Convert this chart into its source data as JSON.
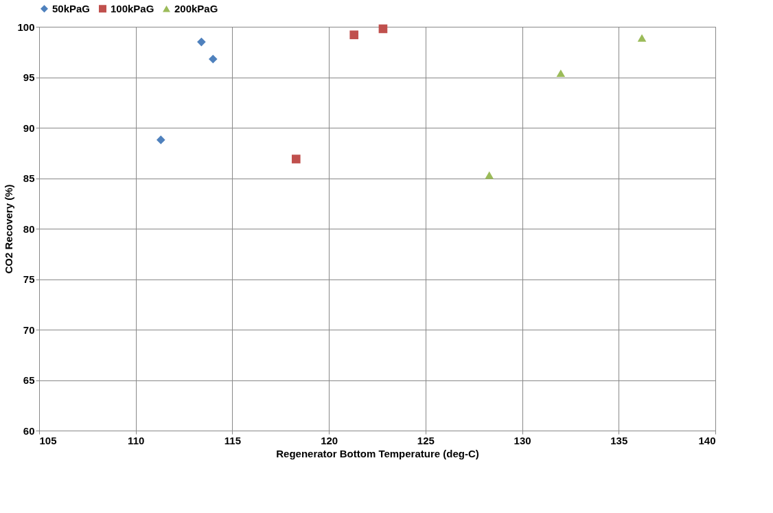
{
  "chart_data": {
    "type": "scatter",
    "xlabel": "Regenerator Bottom Temperature (deg-C)",
    "ylabel": "CO2 Recovery (%)",
    "xlim": [
      105,
      140
    ],
    "xticks": [
      105,
      110,
      115,
      120,
      125,
      130,
      135,
      140
    ],
    "ylim": [
      60,
      100
    ],
    "yticks": [
      60,
      65,
      70,
      75,
      80,
      85,
      90,
      95,
      100
    ],
    "grid": true,
    "legend": "top",
    "series": [
      {
        "name": "50kPaG",
        "color": "#4f81bd",
        "marker": "diamond",
        "x": [
          111.3,
          113.4,
          114.0
        ],
        "values": [
          88.8,
          98.5,
          96.8
        ]
      },
      {
        "name": "100kPaG",
        "color": "#c0504d",
        "marker": "square",
        "x": [
          118.3,
          121.3,
          122.8
        ],
        "values": [
          86.9,
          99.2,
          99.8
        ]
      },
      {
        "name": "200kPaG",
        "color": "#9bbb59",
        "marker": "triangle",
        "x": [
          128.3,
          132.0,
          136.2
        ],
        "values": [
          85.3,
          95.4,
          98.9
        ]
      }
    ]
  }
}
